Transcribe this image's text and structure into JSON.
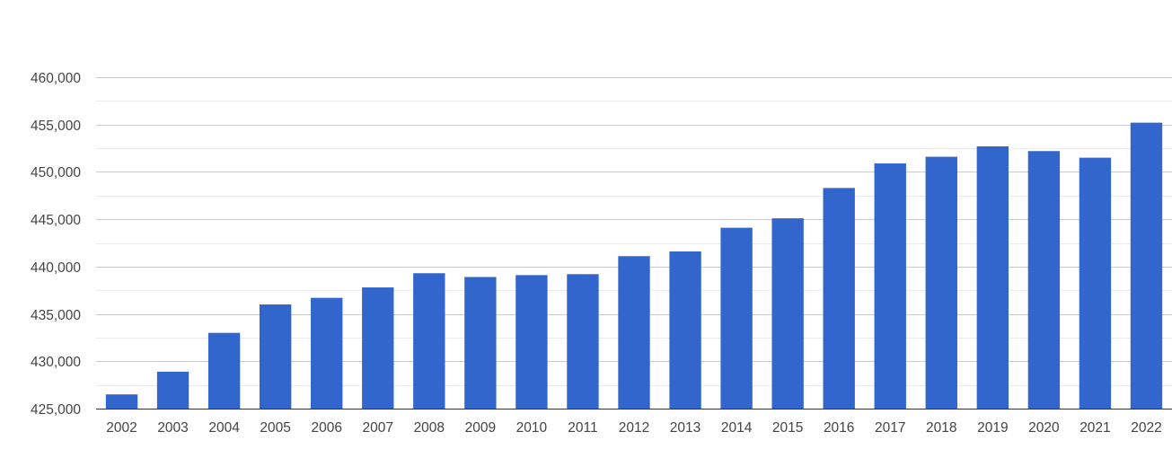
{
  "chart_data": {
    "type": "bar",
    "title": "",
    "xlabel": "",
    "ylabel": "",
    "categories": [
      "2002",
      "2003",
      "2004",
      "2005",
      "2006",
      "2007",
      "2008",
      "2009",
      "2010",
      "2011",
      "2012",
      "2013",
      "2014",
      "2015",
      "2016",
      "2017",
      "2018",
      "2019",
      "2020",
      "2021",
      "2022"
    ],
    "values": [
      426500,
      428900,
      433000,
      436000,
      436700,
      437800,
      439300,
      438900,
      439100,
      439200,
      441100,
      441600,
      444100,
      445100,
      448300,
      450900,
      451600,
      452700,
      452200,
      451500,
      455200
    ],
    "ylim": [
      425000,
      460000
    ],
    "yticks": [
      425000,
      430000,
      435000,
      440000,
      445000,
      450000,
      455000,
      460000
    ],
    "ytick_labels": [
      "425,000",
      "430,000",
      "435,000",
      "440,000",
      "445,000",
      "450,000",
      "455,000",
      "460,000"
    ],
    "minor_gridlines": true,
    "grid": true,
    "legend": "none",
    "bar_color": "#3366cc"
  }
}
